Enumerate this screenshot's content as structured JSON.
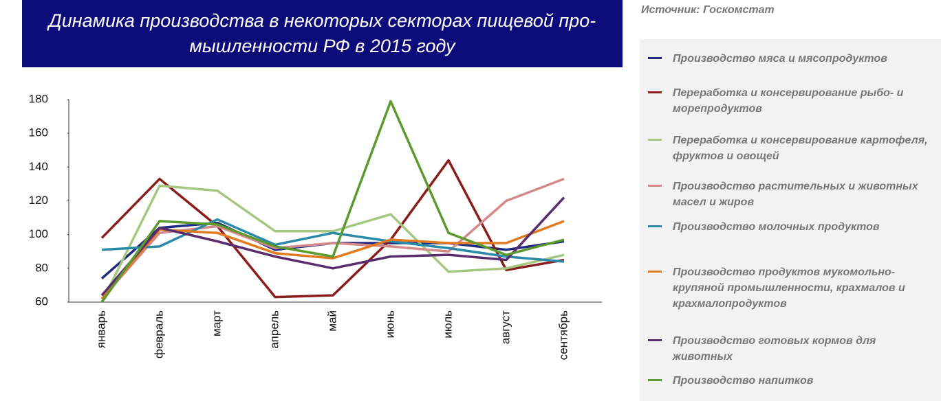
{
  "chart_data": {
    "type": "line",
    "title": "Динамика производства в некоторых секторах пищевой про-\nмышленности РФ в 2015 году",
    "source": "Источник: Госкомстат",
    "categories": [
      "январь",
      "февраль",
      "март",
      "апрель",
      "май",
      "июнь",
      "июль",
      "август",
      "сентябрь"
    ],
    "ylim": [
      60,
      180
    ],
    "yticks": [
      60,
      80,
      100,
      120,
      140,
      160,
      180
    ],
    "series": [
      {
        "name": "Производство мяса и мясопродуктов",
        "color": "#1f2a80",
        "values": [
          74,
          104,
          107,
          91,
          95,
          95,
          95,
          91,
          96
        ]
      },
      {
        "name": "Переработка и консервирование рыбо- и морепродуктов",
        "color": "#8b1c1c",
        "values": [
          98,
          133,
          105,
          63,
          64,
          97,
          144,
          79,
          85
        ]
      },
      {
        "name": "Переработка и консервирование картофеля, фруктов и овощей",
        "color": "#a5c77f",
        "values": [
          60,
          129,
          126,
          102,
          102,
          112,
          78,
          80,
          88
        ]
      },
      {
        "name": "Производство растительных и животных масел и жиров",
        "color": "#d48a8a",
        "values": [
          62,
          101,
          105,
          92,
          95,
          93,
          90,
          120,
          133
        ]
      },
      {
        "name": "Производство молочных продуктов",
        "color": "#2a8aa8",
        "values": [
          91,
          93,
          109,
          94,
          101,
          96,
          92,
          87,
          84
        ]
      },
      {
        "name": "Производство продуктов мукомольно-крупяной промышленности, крахмалов и крахмалопродуктов",
        "color": "#e07b20",
        "values": [
          62,
          103,
          101,
          89,
          86,
          97,
          95,
          95,
          108
        ]
      },
      {
        "name": "Производство готовых кормов для животных",
        "color": "#5a2d6e",
        "values": [
          64,
          104,
          96,
          87,
          80,
          87,
          88,
          85,
          122
        ]
      },
      {
        "name": "Производство напитков",
        "color": "#5c9a2e",
        "values": [
          60,
          108,
          106,
          93,
          87,
          179,
          101,
          88,
          97
        ]
      }
    ]
  }
}
